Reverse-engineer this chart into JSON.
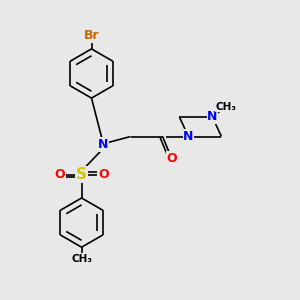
{
  "bg_color": "#e8e8e8",
  "atom_colors": {
    "C": "#000000",
    "N": "#0000ff",
    "O": "#ff0000",
    "S": "#cccc00",
    "Br": "#cc6600"
  },
  "bond_color": "#000000",
  "bond_lw": 1.2,
  "figsize": [
    3.0,
    3.0
  ],
  "dpi": 100,
  "xlim": [
    0,
    10
  ],
  "ylim": [
    0,
    10
  ]
}
